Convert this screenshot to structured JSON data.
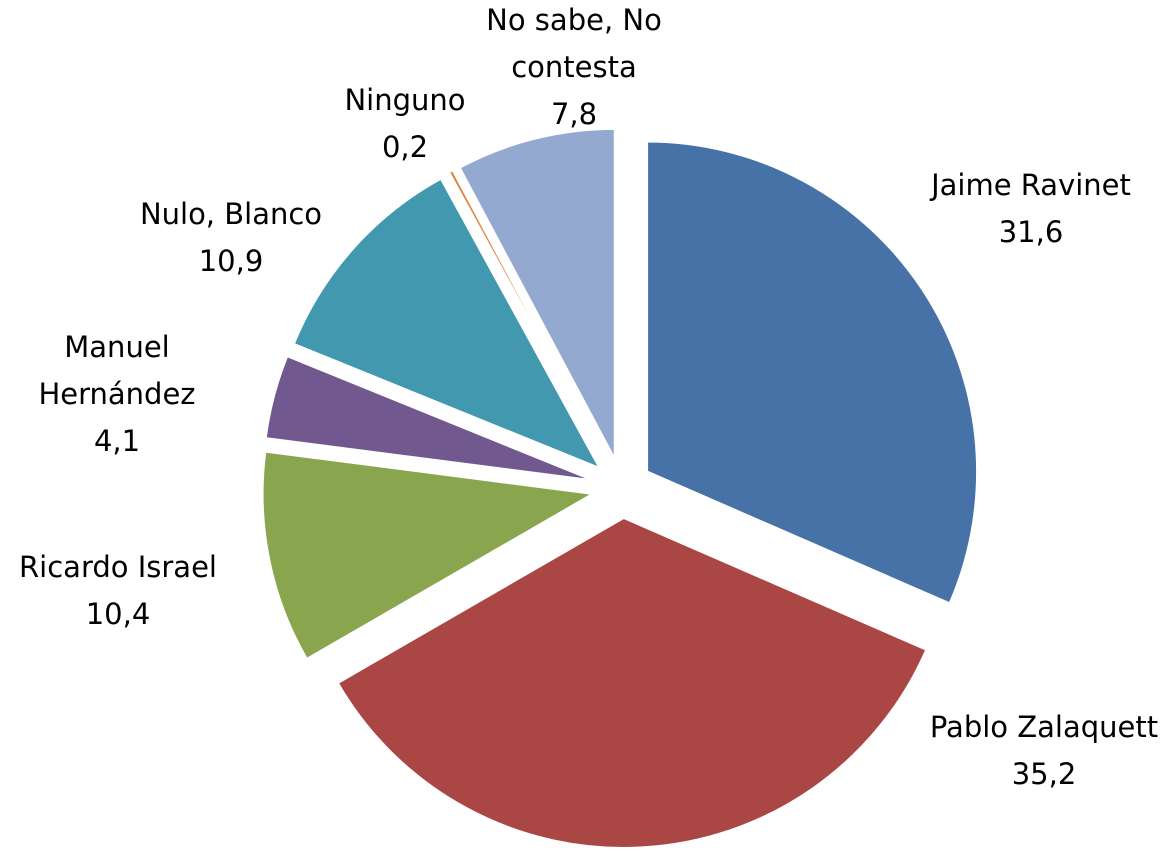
{
  "chart_data": {
    "type": "pie",
    "title": "",
    "slices": [
      {
        "label_lines": [
          "Jaime Ravinet"
        ],
        "value": 31.6,
        "value_label": "31,6",
        "color": "#4672A8"
      },
      {
        "label_lines": [
          "Pablo Zalaquett"
        ],
        "value": 35.2,
        "value_label": "35,2",
        "color": "#AA4643"
      },
      {
        "label_lines": [
          "Ricardo Israel"
        ],
        "value": 10.4,
        "value_label": "10,4",
        "color": "#89A54E"
      },
      {
        "label_lines": [
          "Manuel",
          "Hernández"
        ],
        "value": 4.1,
        "value_label": "4,1",
        "color": "#71588F"
      },
      {
        "label_lines": [
          "Nulo, Blanco"
        ],
        "value": 10.9,
        "value_label": "10,9",
        "color": "#4198AF"
      },
      {
        "label_lines": [
          "Ninguno"
        ],
        "value": 0.2,
        "value_label": "0,2",
        "color": "#DB843D"
      },
      {
        "label_lines": [
          "No sabe, No",
          "contesta"
        ],
        "value": 7.8,
        "value_label": "7,8",
        "color": "#93A9CF"
      }
    ]
  }
}
